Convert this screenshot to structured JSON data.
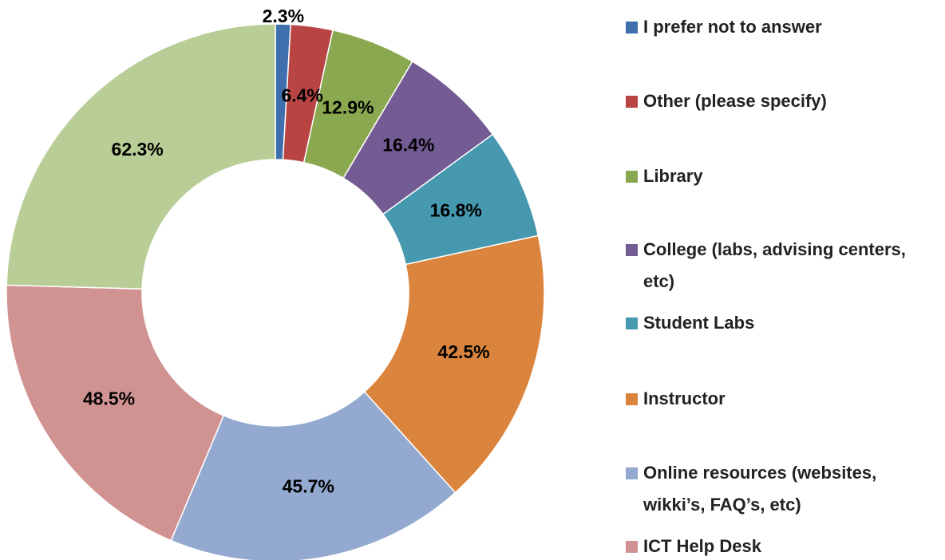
{
  "chart_data": {
    "type": "donut",
    "categories": [
      "I prefer not to answer",
      "Other (please specify)",
      "Library",
      "College (labs, advising centers, etc)",
      "Student Labs",
      "Instructor",
      "Online resources (websites, wikki’s, FAQ’s, etc)",
      "ICT Help Desk",
      null
    ],
    "values": [
      2.3,
      6.4,
      12.9,
      16.4,
      16.8,
      42.5,
      45.7,
      48.5,
      62.3
    ],
    "value_labels": [
      "2.3%",
      "6.4%",
      "12.9%",
      "16.4%",
      "16.8%",
      "42.5%",
      "45.7%",
      "48.5%",
      "62.3%"
    ],
    "colors": [
      "#3f6fad",
      "#b84543",
      "#8aa84f",
      "#735b93",
      "#4598ae",
      "#db843d",
      "#93a9cf",
      "#d19392",
      "#b9cd96"
    ],
    "legend": "right"
  }
}
